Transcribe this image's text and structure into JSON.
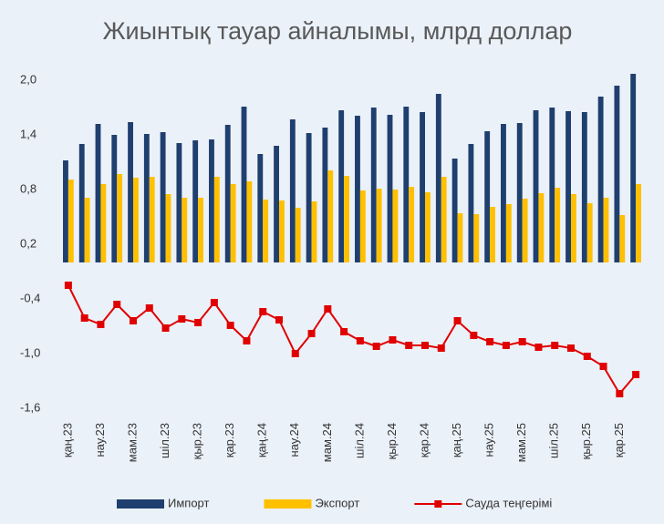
{
  "chart_data": {
    "type": "bar-line",
    "title": "Жиынтық тауар айналымы, млрд доллар",
    "categories": [
      "қаң.23",
      null,
      "нау.23",
      null,
      "мам.23",
      null,
      "шіл.23",
      null,
      "қыр.23",
      null,
      "қар.23",
      null,
      "қаң.24",
      null,
      "нау.24",
      null,
      "мам.24",
      null,
      "шіл.24",
      null,
      "қыр.24",
      null,
      "қар.24",
      null,
      "қаң.25",
      null,
      "нау.25",
      null,
      "мам.25",
      null,
      "шіл.25",
      null,
      "қыр.25",
      null,
      "қар.25",
      null
    ],
    "series": [
      {
        "name": "Импорт",
        "type": "bar",
        "color": "#1f3f6e",
        "values": [
          1.12,
          1.3,
          1.52,
          1.4,
          1.54,
          1.41,
          1.43,
          1.31,
          1.34,
          1.35,
          1.51,
          1.71,
          1.19,
          1.28,
          1.57,
          1.42,
          1.48,
          1.67,
          1.61,
          1.7,
          1.62,
          1.71,
          1.65,
          1.85,
          1.14,
          1.3,
          1.44,
          1.52,
          1.53,
          1.67,
          1.7,
          1.66,
          1.65,
          1.82,
          1.94,
          2.07
        ]
      },
      {
        "name": "Экспорт",
        "type": "bar",
        "color": "#ffc000",
        "values": [
          0.91,
          0.71,
          0.86,
          0.97,
          0.93,
          0.94,
          0.75,
          0.71,
          0.71,
          0.94,
          0.86,
          0.89,
          0.69,
          0.68,
          0.6,
          0.67,
          1.01,
          0.95,
          0.79,
          0.81,
          0.8,
          0.83,
          0.77,
          0.94,
          0.54,
          0.53,
          0.61,
          0.64,
          0.7,
          0.76,
          0.82,
          0.75,
          0.65,
          0.71,
          0.52,
          0.86
        ]
      },
      {
        "name": "Сауда теңгерімі",
        "type": "line",
        "color": "#e00000",
        "values": [
          -0.25,
          -0.61,
          -0.68,
          -0.46,
          -0.64,
          -0.5,
          -0.72,
          -0.62,
          -0.66,
          -0.44,
          -0.69,
          -0.86,
          -0.54,
          -0.63,
          -1.0,
          -0.78,
          -0.51,
          -0.76,
          -0.86,
          -0.92,
          -0.85,
          -0.91,
          -0.91,
          -0.94,
          -0.64,
          -0.8,
          -0.87,
          -0.91,
          -0.87,
          -0.93,
          -0.91,
          -0.94,
          -1.03,
          -1.14,
          -1.44,
          -1.23
        ]
      }
    ],
    "ylim": [
      -1.6,
      2.1
    ],
    "yticks": [
      {
        "value": 2.0,
        "label": "2,0"
      },
      {
        "value": 1.4,
        "label": "1,4"
      },
      {
        "value": 0.8,
        "label": "0,8"
      },
      {
        "value": 0.2,
        "label": "0,2"
      },
      {
        "value": -0.4,
        "label": "-0,4"
      },
      {
        "value": -1.0,
        "label": "-1,0"
      },
      {
        "value": -1.6,
        "label": "-1,6"
      }
    ],
    "grid": false,
    "legend": "bottom"
  }
}
